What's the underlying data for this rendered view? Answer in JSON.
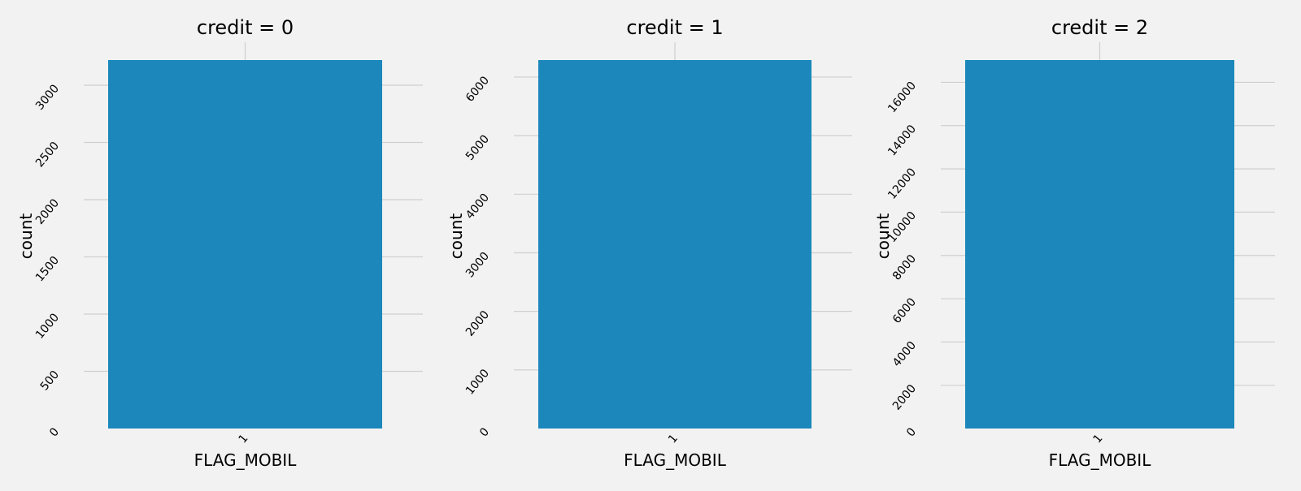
{
  "chart_data": [
    {
      "type": "bar",
      "title": "credit = 0",
      "xlabel": "FLAG_MOBIL",
      "ylabel": "count",
      "categories": [
        "1"
      ],
      "values": [
        3220
      ],
      "ylim": [
        0,
        3220
      ],
      "yticks": [
        0,
        500,
        1000,
        1500,
        2000,
        2500,
        3000
      ],
      "grid": true,
      "color": "#1b87bb"
    },
    {
      "type": "bar",
      "title": "credit = 1",
      "xlabel": "FLAG_MOBIL",
      "ylabel": "count",
      "categories": [
        "1"
      ],
      "values": [
        6290
      ],
      "ylim": [
        0,
        6290
      ],
      "yticks": [
        0,
        1000,
        2000,
        3000,
        4000,
        5000,
        6000
      ],
      "grid": true,
      "color": "#1b87bb"
    },
    {
      "type": "bar",
      "title": "credit = 2",
      "xlabel": "FLAG_MOBIL",
      "ylabel": "count",
      "categories": [
        "1"
      ],
      "values": [
        17030
      ],
      "ylim": [
        0,
        17030
      ],
      "yticks": [
        0,
        2000,
        4000,
        6000,
        8000,
        10000,
        12000,
        14000,
        16000
      ],
      "grid": true,
      "color": "#1b87bb"
    }
  ]
}
